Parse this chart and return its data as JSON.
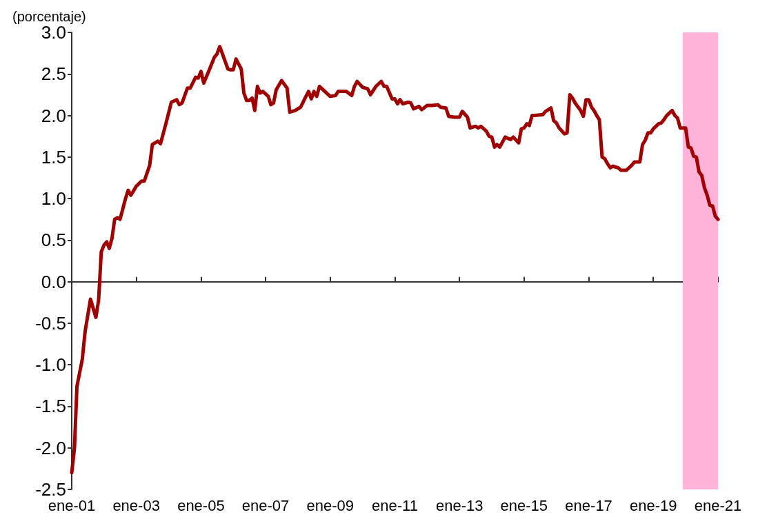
{
  "chart_data": {
    "type": "line",
    "ylabel": "(porcentaje)",
    "x": [
      "2001-01",
      "2001-02",
      "2001-03",
      "2001-05",
      "2001-06",
      "2001-08",
      "2001-10",
      "2001-11",
      "2001-12",
      "2002-01",
      "2002-02",
      "2002-03",
      "2002-04",
      "2002-05",
      "2002-06",
      "2002-07",
      "2002-09",
      "2002-10",
      "2002-11",
      "2003-01",
      "2003-03",
      "2003-04",
      "2003-06",
      "2003-07",
      "2003-09",
      "2003-10",
      "2003-12",
      "2004-02",
      "2004-04",
      "2004-05",
      "2004-06",
      "2004-08",
      "2004-09",
      "2004-11",
      "2004-12",
      "2005-01",
      "2005-02",
      "2005-04",
      "2005-06",
      "2005-07",
      "2005-08",
      "2005-09",
      "2005-11",
      "2005-12",
      "2006-01",
      "2006-02",
      "2006-04",
      "2006-05",
      "2006-06",
      "2006-07",
      "2006-08",
      "2006-09",
      "2006-10",
      "2006-11",
      "2006-12",
      "2007-02",
      "2007-03",
      "2007-04",
      "2007-05",
      "2007-07",
      "2007-09",
      "2007-10",
      "2007-12",
      "2008-02",
      "2008-04",
      "2008-05",
      "2008-06",
      "2008-07",
      "2008-08",
      "2008-09",
      "2008-11",
      "2009-01",
      "2009-03",
      "2009-04",
      "2009-07",
      "2009-09",
      "2009-10",
      "2009-11",
      "2010-01",
      "2010-03",
      "2010-04",
      "2010-06",
      "2010-07",
      "2010-08",
      "2010-09",
      "2010-10",
      "2010-12",
      "2011-01",
      "2011-02",
      "2011-03",
      "2011-04",
      "2011-06",
      "2011-07",
      "2011-08",
      "2011-10",
      "2011-11",
      "2012-01",
      "2012-03",
      "2012-05",
      "2012-06",
      "2012-08",
      "2012-09",
      "2012-11",
      "2013-01",
      "2013-02",
      "2013-04",
      "2013-05",
      "2013-07",
      "2013-08",
      "2013-09",
      "2013-11",
      "2013-12",
      "2014-01",
      "2014-02",
      "2014-03",
      "2014-04",
      "2014-06",
      "2014-08",
      "2014-09",
      "2014-11",
      "2014-12",
      "2015-01",
      "2015-02",
      "2015-03",
      "2015-04",
      "2015-05",
      "2015-08",
      "2015-09",
      "2015-11",
      "2015-12",
      "2016-01",
      "2016-02",
      "2016-04",
      "2016-05",
      "2016-06",
      "2016-07",
      "2016-08",
      "2016-10",
      "2016-11",
      "2016-12",
      "2017-01",
      "2017-02",
      "2017-03",
      "2017-04",
      "2017-05",
      "2017-06",
      "2017-07",
      "2017-08",
      "2017-09",
      "2017-10",
      "2017-12",
      "2018-01",
      "2018-03",
      "2018-04",
      "2018-05",
      "2018-06",
      "2018-08",
      "2018-09",
      "2018-10",
      "2018-11",
      "2018-12",
      "2019-01",
      "2019-03",
      "2019-04",
      "2019-05",
      "2019-06",
      "2019-08",
      "2019-09",
      "2019-10",
      "2019-11",
      "2020-01",
      "2020-02",
      "2020-03",
      "2020-04",
      "2020-05",
      "2020-06",
      "2020-07",
      "2020-08",
      "2020-09",
      "2020-10",
      "2020-11",
      "2020-12",
      "2021-01"
    ],
    "series": [
      {
        "color": "#a00000",
        "values": [
          -2.3,
          -2.0,
          -1.26,
          -0.93,
          -0.6,
          -0.21,
          -0.43,
          -0.22,
          0.36,
          0.44,
          0.48,
          0.4,
          0.52,
          0.75,
          0.77,
          0.75,
          1.0,
          1.1,
          1.04,
          1.15,
          1.21,
          1.21,
          1.4,
          1.65,
          1.69,
          1.66,
          1.9,
          2.16,
          2.19,
          2.13,
          2.15,
          2.33,
          2.33,
          2.46,
          2.45,
          2.53,
          2.39,
          2.54,
          2.7,
          2.74,
          2.83,
          2.74,
          2.56,
          2.55,
          2.55,
          2.68,
          2.56,
          2.27,
          2.18,
          2.18,
          2.21,
          2.06,
          2.35,
          2.27,
          2.29,
          2.23,
          2.13,
          2.15,
          2.31,
          2.42,
          2.33,
          2.04,
          2.06,
          2.1,
          2.23,
          2.29,
          2.2,
          2.29,
          2.23,
          2.35,
          2.29,
          2.23,
          2.24,
          2.29,
          2.29,
          2.24,
          2.35,
          2.41,
          2.34,
          2.32,
          2.25,
          2.35,
          2.38,
          2.41,
          2.35,
          2.35,
          2.2,
          2.2,
          2.14,
          2.19,
          2.14,
          2.16,
          2.15,
          2.08,
          2.11,
          2.07,
          2.12,
          2.12,
          2.13,
          2.1,
          2.09,
          1.99,
          1.98,
          1.98,
          2.05,
          1.98,
          1.85,
          1.87,
          1.85,
          1.87,
          1.81,
          1.75,
          1.74,
          1.62,
          1.65,
          1.62,
          1.74,
          1.71,
          1.74,
          1.67,
          1.84,
          1.85,
          1.9,
          1.88,
          2.0,
          2.0,
          2.01,
          2.05,
          2.09,
          1.94,
          1.91,
          1.85,
          1.78,
          1.79,
          2.25,
          2.21,
          2.15,
          2.06,
          1.99,
          2.19,
          2.19,
          2.1,
          2.06,
          2.0,
          1.95,
          1.5,
          1.48,
          1.42,
          1.37,
          1.39,
          1.37,
          1.34,
          1.34,
          1.37,
          1.4,
          1.44,
          1.44,
          1.65,
          1.7,
          1.79,
          1.79,
          1.84,
          1.9,
          1.91,
          1.95,
          2.0,
          2.06,
          2.0,
          1.97,
          1.85,
          1.85,
          1.62,
          1.61,
          1.51,
          1.5,
          1.32,
          1.28,
          1.13,
          1.04,
          0.92,
          0.91,
          0.79,
          0.75
        ]
      }
    ],
    "xlim": [
      "2001-01",
      "2021-01"
    ],
    "xticks": [
      {
        "value": "2001-01",
        "label": "ene-01"
      },
      {
        "value": "2003-01",
        "label": "ene-03"
      },
      {
        "value": "2005-01",
        "label": "ene-05"
      },
      {
        "value": "2007-01",
        "label": "ene-07"
      },
      {
        "value": "2009-01",
        "label": "ene-09"
      },
      {
        "value": "2011-01",
        "label": "ene-11"
      },
      {
        "value": "2013-01",
        "label": "ene-13"
      },
      {
        "value": "2015-01",
        "label": "ene-15"
      },
      {
        "value": "2017-01",
        "label": "ene-17"
      },
      {
        "value": "2019-01",
        "label": "ene-19"
      },
      {
        "value": "2021-01",
        "label": "ene-21"
      }
    ],
    "ylim": [
      -2.5,
      3.0
    ],
    "yticks": [
      {
        "value": -2.5,
        "label": "-2.5"
      },
      {
        "value": -2,
        "label": "-2.0"
      },
      {
        "value": -1.5,
        "label": "-1.5"
      },
      {
        "value": -1,
        "label": "-1.0"
      },
      {
        "value": -0.5,
        "label": "-0.5"
      },
      {
        "value": 0,
        "label": "0.0"
      },
      {
        "value": 0.5,
        "label": "0.5"
      },
      {
        "value": 1,
        "label": "1.0"
      },
      {
        "value": 1.5,
        "label": "1.5"
      },
      {
        "value": 2,
        "label": "2.0"
      },
      {
        "value": 2.5,
        "label": "2.5"
      },
      {
        "value": 3,
        "label": "3.0"
      }
    ],
    "bands": [
      {
        "axis": "x",
        "from": "2019-12",
        "to": "2021-01",
        "color": "#ffb3d9"
      }
    ],
    "marker": "none",
    "line_style": "solid"
  }
}
